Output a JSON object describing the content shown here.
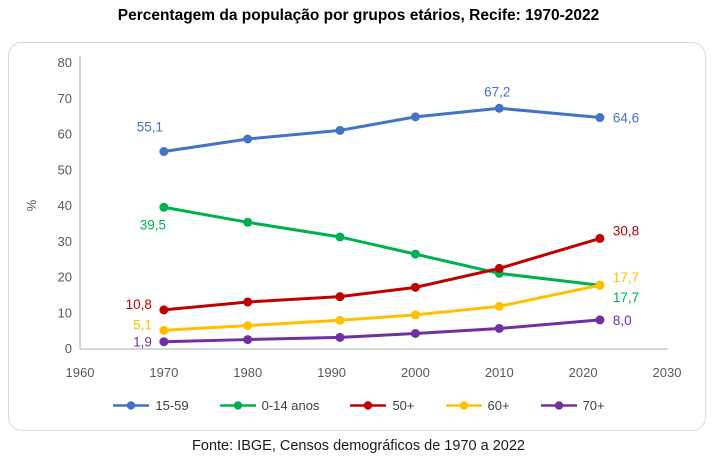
{
  "chart_data": {
    "type": "line",
    "title": "Percentagem da população por grupos etários, Recife: 1970-2022",
    "source_note": "Fonte: IBGE, Censos demográficos de 1970 a 2022",
    "ylabel": "%",
    "xlim": [
      1960,
      2030
    ],
    "ylim": [
      0,
      80
    ],
    "x_ticks": [
      1960,
      1970,
      1980,
      1990,
      2000,
      2010,
      2020,
      2030
    ],
    "y_ticks": [
      0,
      10,
      20,
      30,
      40,
      50,
      60,
      70,
      80
    ],
    "grid": false,
    "legend_position": "bottom",
    "axis_color": "#bfbfbf",
    "tick_label_color": "#595959",
    "x": [
      1970,
      1980,
      1991,
      2000,
      2010,
      2022
    ],
    "series": [
      {
        "name": "15-59",
        "color": "#4472C4",
        "values": [
          55.1,
          58.6,
          61.0,
          64.8,
          67.2,
          64.6
        ],
        "point_labels": [
          {
            "x": 1970,
            "text": "55,1",
            "pos": "above-left"
          },
          {
            "x": 2010,
            "text": "67,2",
            "pos": "above"
          },
          {
            "x": 2022,
            "text": "64,6",
            "pos": "right"
          }
        ]
      },
      {
        "name": "0-14 anos",
        "color": "#00B050",
        "values": [
          39.5,
          35.3,
          31.2,
          26.4,
          21.0,
          17.7
        ],
        "point_labels": [
          {
            "x": 1970,
            "text": "39,5",
            "pos": "below-left"
          },
          {
            "x": 2022,
            "text": "17,7",
            "pos": "right-down"
          }
        ]
      },
      {
        "name": "50+",
        "color": "#C00000",
        "values": [
          10.8,
          13.0,
          14.5,
          17.1,
          22.4,
          30.8
        ],
        "point_labels": [
          {
            "x": 1970,
            "text": "10,8",
            "pos": "left"
          },
          {
            "x": 2022,
            "text": "30,8",
            "pos": "right-up"
          }
        ]
      },
      {
        "name": "60+",
        "color": "#FFC000",
        "values": [
          5.1,
          6.4,
          7.9,
          9.4,
          11.8,
          17.7
        ],
        "point_labels": [
          {
            "x": 1970,
            "text": "5,1",
            "pos": "left"
          },
          {
            "x": 2022,
            "text": "17,7",
            "pos": "right-up"
          }
        ]
      },
      {
        "name": "70+",
        "color": "#7030A0",
        "values": [
          1.9,
          2.5,
          3.1,
          4.2,
          5.6,
          8.0
        ],
        "point_labels": [
          {
            "x": 1970,
            "text": "1,9",
            "pos": "left-down"
          },
          {
            "x": 2022,
            "text": "8,0",
            "pos": "right"
          }
        ]
      }
    ]
  }
}
